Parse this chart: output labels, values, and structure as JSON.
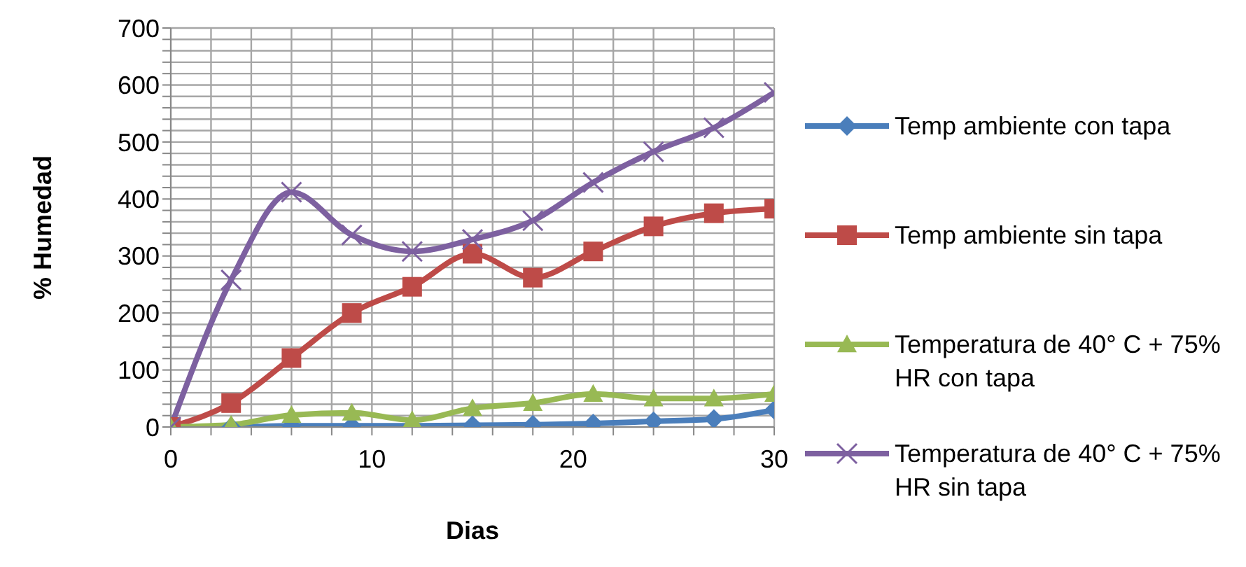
{
  "chart_data": {
    "type": "line",
    "xlabel": "Dias",
    "ylabel": "% Humedad",
    "x": [
      0,
      3,
      6,
      9,
      12,
      15,
      18,
      21,
      24,
      27,
      30
    ],
    "xlim": [
      0,
      30
    ],
    "xticks": [
      0,
      {
        "value": 2,
        "label": null
      },
      {
        "value": 4,
        "label": null
      },
      {
        "value": 6,
        "label": null
      },
      {
        "value": 8,
        "label": null
      },
      10,
      {
        "value": 12,
        "label": null
      },
      {
        "value": 14,
        "label": null
      },
      {
        "value": 16,
        "label": null
      },
      {
        "value": 18,
        "label": null
      },
      20,
      {
        "value": 22,
        "label": null
      },
      {
        "value": 24,
        "label": null
      },
      {
        "value": 26,
        "label": null
      },
      {
        "value": 28,
        "label": null
      },
      30
    ],
    "ylim": [
      0,
      700
    ],
    "yticks": [
      0,
      {
        "value": 20,
        "label": null
      },
      {
        "value": 40,
        "label": null
      },
      {
        "value": 60,
        "label": null
      },
      {
        "value": 80,
        "label": null
      },
      100,
      {
        "value": 120,
        "label": null
      },
      {
        "value": 140,
        "label": null
      },
      {
        "value": 160,
        "label": null
      },
      {
        "value": 180,
        "label": null
      },
      200,
      {
        "value": 220,
        "label": null
      },
      {
        "value": 240,
        "label": null
      },
      {
        "value": 260,
        "label": null
      },
      {
        "value": 280,
        "label": null
      },
      300,
      {
        "value": 320,
        "label": null
      },
      {
        "value": 340,
        "label": null
      },
      {
        "value": 360,
        "label": null
      },
      {
        "value": 380,
        "label": null
      },
      400,
      {
        "value": 420,
        "label": null
      },
      {
        "value": 440,
        "label": null
      },
      {
        "value": 460,
        "label": null
      },
      {
        "value": 480,
        "label": null
      },
      500,
      {
        "value": 520,
        "label": null
      },
      {
        "value": 540,
        "label": null
      },
      {
        "value": 560,
        "label": null
      },
      {
        "value": 580,
        "label": null
      },
      600,
      {
        "value": 620,
        "label": null
      },
      {
        "value": 640,
        "label": null
      },
      {
        "value": 660,
        "label": null
      },
      {
        "value": 680,
        "label": null
      },
      700
    ],
    "grid": true,
    "legend": "right",
    "line_style": "solid",
    "series": [
      {
        "name": "Temp ambiente con tapa",
        "color": "#4a7ebb",
        "marker": "diamond",
        "values": [
          0,
          0,
          2,
          2,
          2,
          3,
          4,
          6,
          10,
          14,
          30
        ]
      },
      {
        "name": "Temp ambiente sin tapa",
        "color": "#be4b48",
        "marker": "square",
        "values": [
          0,
          42,
          121,
          200,
          246,
          304,
          262,
          308,
          352,
          375,
          383
        ]
      },
      {
        "name": "Temperatura de 40° C + 75% HR con tapa",
        "color": "#98b954",
        "marker": "triangle",
        "values": [
          0,
          4,
          21,
          25,
          12,
          33,
          42,
          58,
          50,
          50,
          58
        ]
      },
      {
        "name": "Temperatura de 40° C + 75% HR sin tapa",
        "color": "#7d60a0",
        "marker": "cross",
        "values": [
          0,
          258,
          412,
          337,
          308,
          329,
          362,
          429,
          483,
          525,
          587
        ]
      }
    ]
  }
}
